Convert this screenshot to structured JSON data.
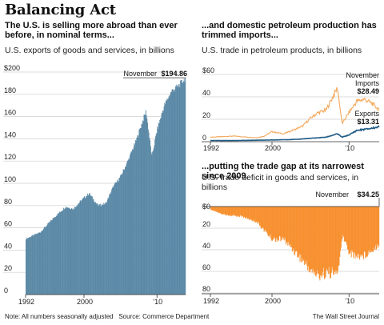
{
  "title": "Balancing Act",
  "left_panel": {
    "headline": "The U.S. is selling more abroad than ever before, in nominal terms...",
    "subtitle": "U.S. exports of goods and services, in billions",
    "annotation_label": "November",
    "annotation_value": "$194.86",
    "bar_color": "#5b89a6"
  },
  "top_right_panel": {
    "headline": "...and domestic petroleum production has trimmed imports...",
    "subtitle": "U.S. trade in petroleum products, in billions",
    "annotation_month": "November",
    "imports_label": "Imports",
    "imports_value": "$28.49",
    "exports_label": "Exports",
    "exports_value": "$13.31",
    "imports_color": "#f4a95c",
    "exports_color": "#1f5b85"
  },
  "bottom_right_panel": {
    "headline": "...putting the trade gap at its narrowest since 2009.",
    "subtitle": "U.S. trade deficit in goods and services, in billions",
    "annotation_label": "November",
    "annotation_value": "$34.25",
    "bar_color": "#f7902f"
  },
  "footer": {
    "note": "Note: All numbers seasonally adjusted",
    "source": "Source: Commerce Department",
    "credit": "The Wall Street Journal"
  },
  "chart_data": [
    {
      "type": "bar",
      "x_range": [
        1992,
        2013.92
      ],
      "ylim": [
        0,
        200
      ],
      "y_ticks": [
        "$200",
        "180",
        "160",
        "140",
        "120",
        "100",
        "80",
        "60",
        "40",
        "20",
        "0"
      ],
      "x_ticks": [
        "1992",
        "2000",
        "'10"
      ],
      "series": [
        {
          "name": "Exports of goods and services",
          "points": [
            [
              1992.0,
              50
            ],
            [
              1994.0,
              56
            ],
            [
              1996.0,
              70
            ],
            [
              1997.5,
              79
            ],
            [
              1998.5,
              77
            ],
            [
              2000.0,
              87
            ],
            [
              2000.7,
              91
            ],
            [
              2001.9,
              80
            ],
            [
              2003.0,
              82
            ],
            [
              2004.0,
              97
            ],
            [
              2005.0,
              106
            ],
            [
              2006.0,
              120
            ],
            [
              2007.0,
              136
            ],
            [
              2008.5,
              165
            ],
            [
              2009.3,
              124
            ],
            [
              2010.0,
              148
            ],
            [
              2011.0,
              170
            ],
            [
              2012.0,
              183
            ],
            [
              2013.0,
              188
            ],
            [
              2013.92,
              194.86
            ]
          ]
        }
      ]
    },
    {
      "type": "line",
      "x_range": [
        1992,
        2013.92
      ],
      "ylim": [
        0,
        60
      ],
      "y_ticks": [
        "$60",
        "40",
        "20",
        "0"
      ],
      "x_ticks": [
        "1992",
        "2000",
        "'10"
      ],
      "series": [
        {
          "name": "Imports",
          "points": [
            [
              1992.0,
              4
            ],
            [
              1995.0,
              5
            ],
            [
              1998.0,
              3.5
            ],
            [
              1999.0,
              5
            ],
            [
              2000.0,
              9
            ],
            [
              2001.5,
              7
            ],
            [
              2003.0,
              11
            ],
            [
              2004.0,
              14
            ],
            [
              2005.0,
              21
            ],
            [
              2006.0,
              26
            ],
            [
              2007.0,
              28
            ],
            [
              2008.5,
              48
            ],
            [
              2009.1,
              16
            ],
            [
              2010.0,
              26
            ],
            [
              2011.0,
              36
            ],
            [
              2012.0,
              38
            ],
            [
              2013.0,
              34
            ],
            [
              2013.92,
              28.49
            ]
          ]
        },
        {
          "name": "Exports",
          "points": [
            [
              1992.0,
              1
            ],
            [
              1995.0,
              1
            ],
            [
              2000.0,
              1.5
            ],
            [
              2003.0,
              2
            ],
            [
              2005.0,
              3
            ],
            [
              2007.0,
              4
            ],
            [
              2008.5,
              7
            ],
            [
              2009.1,
              4
            ],
            [
              2010.0,
              6
            ],
            [
              2011.0,
              10
            ],
            [
              2012.0,
              11
            ],
            [
              2013.0,
              12
            ],
            [
              2013.92,
              13.31
            ]
          ]
        }
      ]
    },
    {
      "type": "bar",
      "x_range": [
        1992,
        2013.92
      ],
      "ylim": [
        0,
        80
      ],
      "y_ticks": [
        "$0",
        "20",
        "40",
        "60",
        "80"
      ],
      "x_ticks": [
        "1992",
        "2000",
        "'10"
      ],
      "series": [
        {
          "name": "Trade deficit",
          "points": [
            [
              1992.0,
              3
            ],
            [
              1994.0,
              8
            ],
            [
              1996.0,
              9
            ],
            [
              1998.0,
              14
            ],
            [
              1999.0,
              22
            ],
            [
              2000.0,
              30
            ],
            [
              2001.5,
              30
            ],
            [
              2003.0,
              42
            ],
            [
              2004.0,
              50
            ],
            [
              2005.0,
              59
            ],
            [
              2006.0,
              64
            ],
            [
              2007.0,
              61
            ],
            [
              2008.5,
              62
            ],
            [
              2009.2,
              27
            ],
            [
              2010.0,
              42
            ],
            [
              2011.0,
              46
            ],
            [
              2012.0,
              45
            ],
            [
              2013.0,
              40
            ],
            [
              2013.92,
              34.25
            ]
          ]
        }
      ]
    }
  ]
}
